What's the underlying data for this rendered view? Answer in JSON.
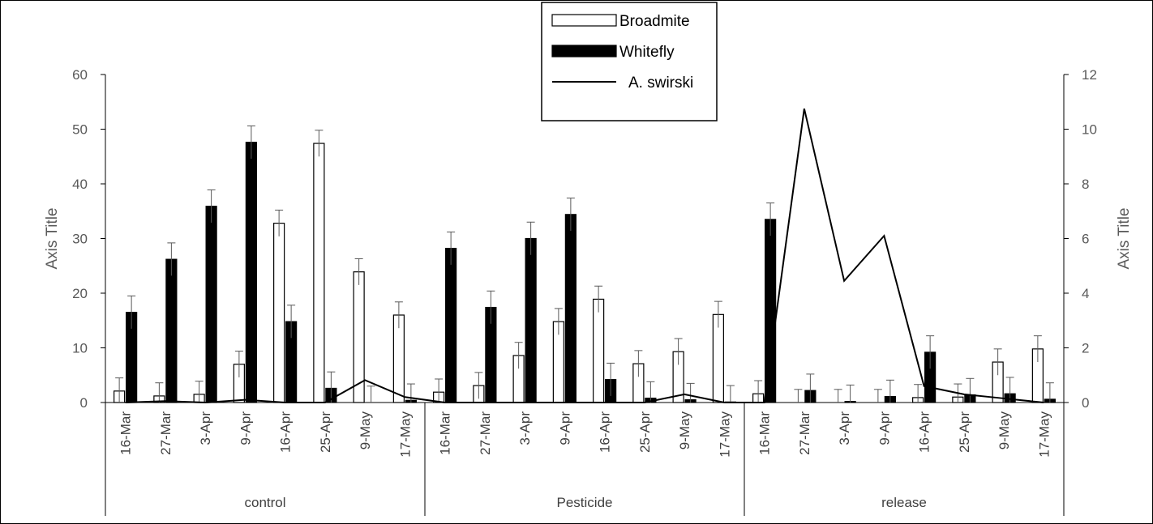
{
  "chart_data": {
    "type": "bar",
    "title": "",
    "ylabel_left": "Axis Title",
    "ylabel_right": "Axis Title",
    "ylim_left": [
      0,
      60
    ],
    "yticks_left": [
      0,
      10,
      20,
      30,
      40,
      50,
      60
    ],
    "ylim_right": [
      0,
      12
    ],
    "yticks_right": [
      0,
      2,
      4,
      6,
      8,
      10,
      12
    ],
    "grid": false,
    "legend_position": "top-center",
    "groups": [
      {
        "label": "control",
        "categories": [
          "16-Mar",
          "27-Mar",
          "3-Apr",
          "9-Apr",
          "16-Apr",
          "25-Apr",
          "9-May",
          "17-May"
        ]
      },
      {
        "label": "Pesticide",
        "categories": [
          "16-Mar",
          "27-Mar",
          "3-Apr",
          "9-Apr",
          "16-Apr",
          "25-Apr",
          "9-May",
          "17-May"
        ]
      },
      {
        "label": "release",
        "categories": [
          "16-Mar",
          "27-Mar",
          "3-Apr",
          "9-Apr",
          "16-Apr",
          "25-Apr",
          "9-May",
          "17-May"
        ]
      }
    ],
    "series": [
      {
        "name": "Broadmite",
        "kind": "bar",
        "axis": "left",
        "fill": "#ffffff",
        "values": [
          2.1,
          1.2,
          1.5,
          7.0,
          32.8,
          47.4,
          23.9,
          16.0,
          1.9,
          3.1,
          8.6,
          14.8,
          18.9,
          7.1,
          9.3,
          16.1,
          1.6,
          0,
          0,
          0,
          0.9,
          1.0,
          7.4,
          9.8
        ],
        "errors": [
          2.4,
          2.4,
          2.4,
          2.4,
          2.4,
          2.4,
          2.4,
          2.4,
          2.4,
          2.4,
          2.4,
          2.4,
          2.4,
          2.4,
          2.4,
          2.4,
          2.4,
          2.4,
          2.4,
          2.4,
          2.4,
          2.4,
          2.4,
          2.4
        ]
      },
      {
        "name": "Whitefly",
        "kind": "bar",
        "axis": "left",
        "fill": "#000000",
        "values": [
          16.5,
          26.2,
          35.9,
          47.6,
          14.8,
          2.6,
          0,
          0.4,
          28.2,
          17.4,
          30.0,
          34.4,
          4.2,
          0.8,
          0.5,
          0.1,
          33.5,
          2.2,
          0.2,
          1.1,
          9.2,
          1.4,
          1.6,
          0.6
        ],
        "errors": [
          3.0,
          3.0,
          3.0,
          3.0,
          3.0,
          3.0,
          3.0,
          3.0,
          3.0,
          3.0,
          3.0,
          3.0,
          3.0,
          3.0,
          3.0,
          3.0,
          3.0,
          3.0,
          3.0,
          3.0,
          3.0,
          3.0,
          3.0,
          3.0
        ]
      },
      {
        "name": "A. swirski",
        "kind": "line",
        "axis": "right",
        "color": "#000000",
        "values": [
          0,
          0.05,
          0,
          0.1,
          0,
          0,
          0.82,
          0.2,
          0,
          0,
          0,
          0,
          0,
          0,
          0.3,
          0,
          0,
          10.75,
          4.45,
          6.1,
          0.6,
          0.3,
          0.15,
          0
        ]
      }
    ]
  }
}
